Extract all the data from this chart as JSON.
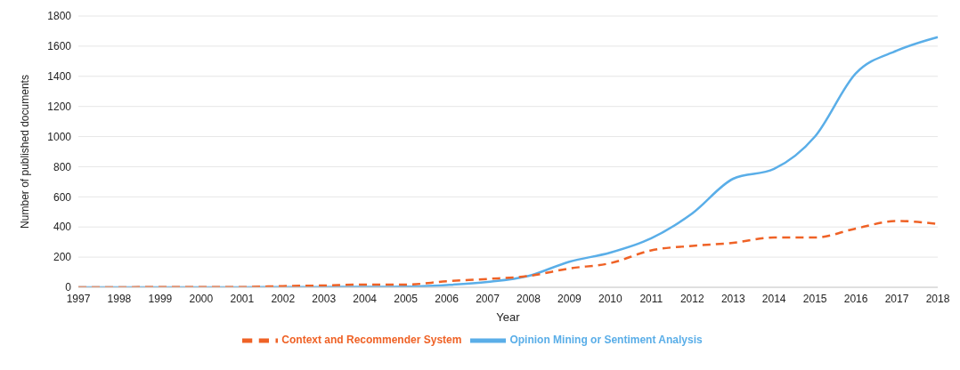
{
  "chart_data": {
    "type": "line",
    "xlabel": "Year",
    "ylabel": "Number of published documents",
    "categories": [
      "1997",
      "1998",
      "1999",
      "2000",
      "2001",
      "2002",
      "2003",
      "2004",
      "2005",
      "2006",
      "2007",
      "2008",
      "2009",
      "2010",
      "2011",
      "2012",
      "2013",
      "2014",
      "2015",
      "2016",
      "2017",
      "2018"
    ],
    "series": [
      {
        "name": "Opinion Mining or Sentiment Analysis",
        "color": "#5aaee8",
        "line_style": "solid",
        "values": [
          0,
          0,
          0,
          0,
          0,
          2,
          2,
          3,
          4,
          15,
          35,
          75,
          170,
          230,
          325,
          490,
          720,
          785,
          1000,
          1420,
          1570,
          1660
        ]
      },
      {
        "name": "Context and Recommender System",
        "color": "#ef6226",
        "line_style": "dashed",
        "values": [
          0,
          0,
          2,
          2,
          2,
          8,
          12,
          18,
          18,
          40,
          55,
          75,
          125,
          160,
          245,
          275,
          295,
          330,
          330,
          390,
          440,
          420
        ]
      }
    ],
    "ylim": [
      0,
      1800
    ],
    "yticks": [
      0,
      200,
      400,
      600,
      800,
      1000,
      1200,
      1400,
      1600,
      1800
    ],
    "grid": "y",
    "legend": "bottom",
    "marker": "none"
  }
}
